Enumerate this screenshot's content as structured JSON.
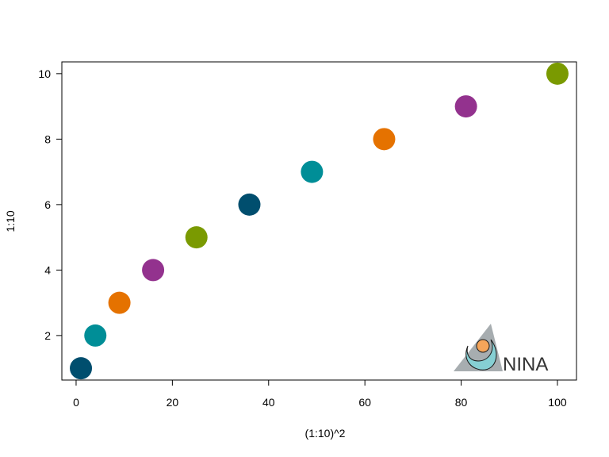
{
  "chart_data": {
    "type": "scatter",
    "title": "",
    "xlabel": "(1:10)^2",
    "ylabel": "1:10",
    "x": [
      1,
      4,
      9,
      16,
      25,
      36,
      49,
      64,
      81,
      100
    ],
    "y": [
      1,
      2,
      3,
      4,
      5,
      6,
      7,
      8,
      9,
      10
    ],
    "point_colors": [
      "#004E6E",
      "#008E97",
      "#E57200",
      "#93328E",
      "#7A9A01",
      "#004E6E",
      "#008E97",
      "#E57200",
      "#93328E",
      "#7A9A01"
    ],
    "xticks": [
      "0",
      "20",
      "40",
      "60",
      "80",
      "100"
    ],
    "yticks": [
      "2",
      "4",
      "6",
      "8",
      "10"
    ],
    "xlim": [
      -2.96,
      103.96
    ],
    "ylim": [
      0.64,
      10.36
    ],
    "grid": false,
    "legend": "none"
  },
  "logo": {
    "text": "NINA",
    "colors": {
      "triangle": "#A7ADB0",
      "crescent": "#86CFD3",
      "dot": "#F5A55A",
      "text": "#333333"
    }
  }
}
